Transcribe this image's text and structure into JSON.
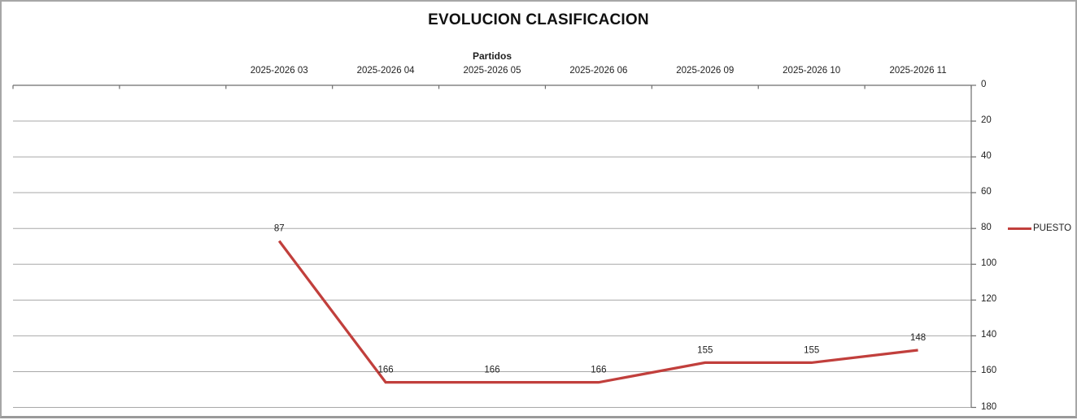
{
  "title": "EVOLUCION CLASIFICACION",
  "chart_data": {
    "type": "line",
    "title": "EVOLUCION CLASIFICACION",
    "x_axis_title": "Partidos",
    "categories": [
      "",
      "",
      "2025-2026 03",
      "2025-2026 04",
      "2025-2026 05",
      "2025-2026 06",
      "2025-2026 09",
      "2025-2026 10",
      "2025-2026 11"
    ],
    "series": [
      {
        "name": "PUESTO",
        "color": "#c13f3c",
        "values": [
          null,
          null,
          87,
          166,
          166,
          166,
          155,
          155,
          148
        ]
      }
    ],
    "y_axis": {
      "min": 0,
      "max": 180,
      "step": 20,
      "reversed": true,
      "side": "right",
      "tick_labels": [
        "0",
        "20",
        "40",
        "60",
        "80",
        "100",
        "120",
        "140",
        "160",
        "180"
      ]
    },
    "grid": true,
    "data_labels": true,
    "legend": {
      "position": "right",
      "label": "PUESTO"
    }
  },
  "colors": {
    "series_red": "#c13f3c",
    "gridline": "#a8a8a8",
    "axis": "#6e6e6e",
    "text": "#1f1f1f",
    "frame": "#a6a6a6"
  }
}
